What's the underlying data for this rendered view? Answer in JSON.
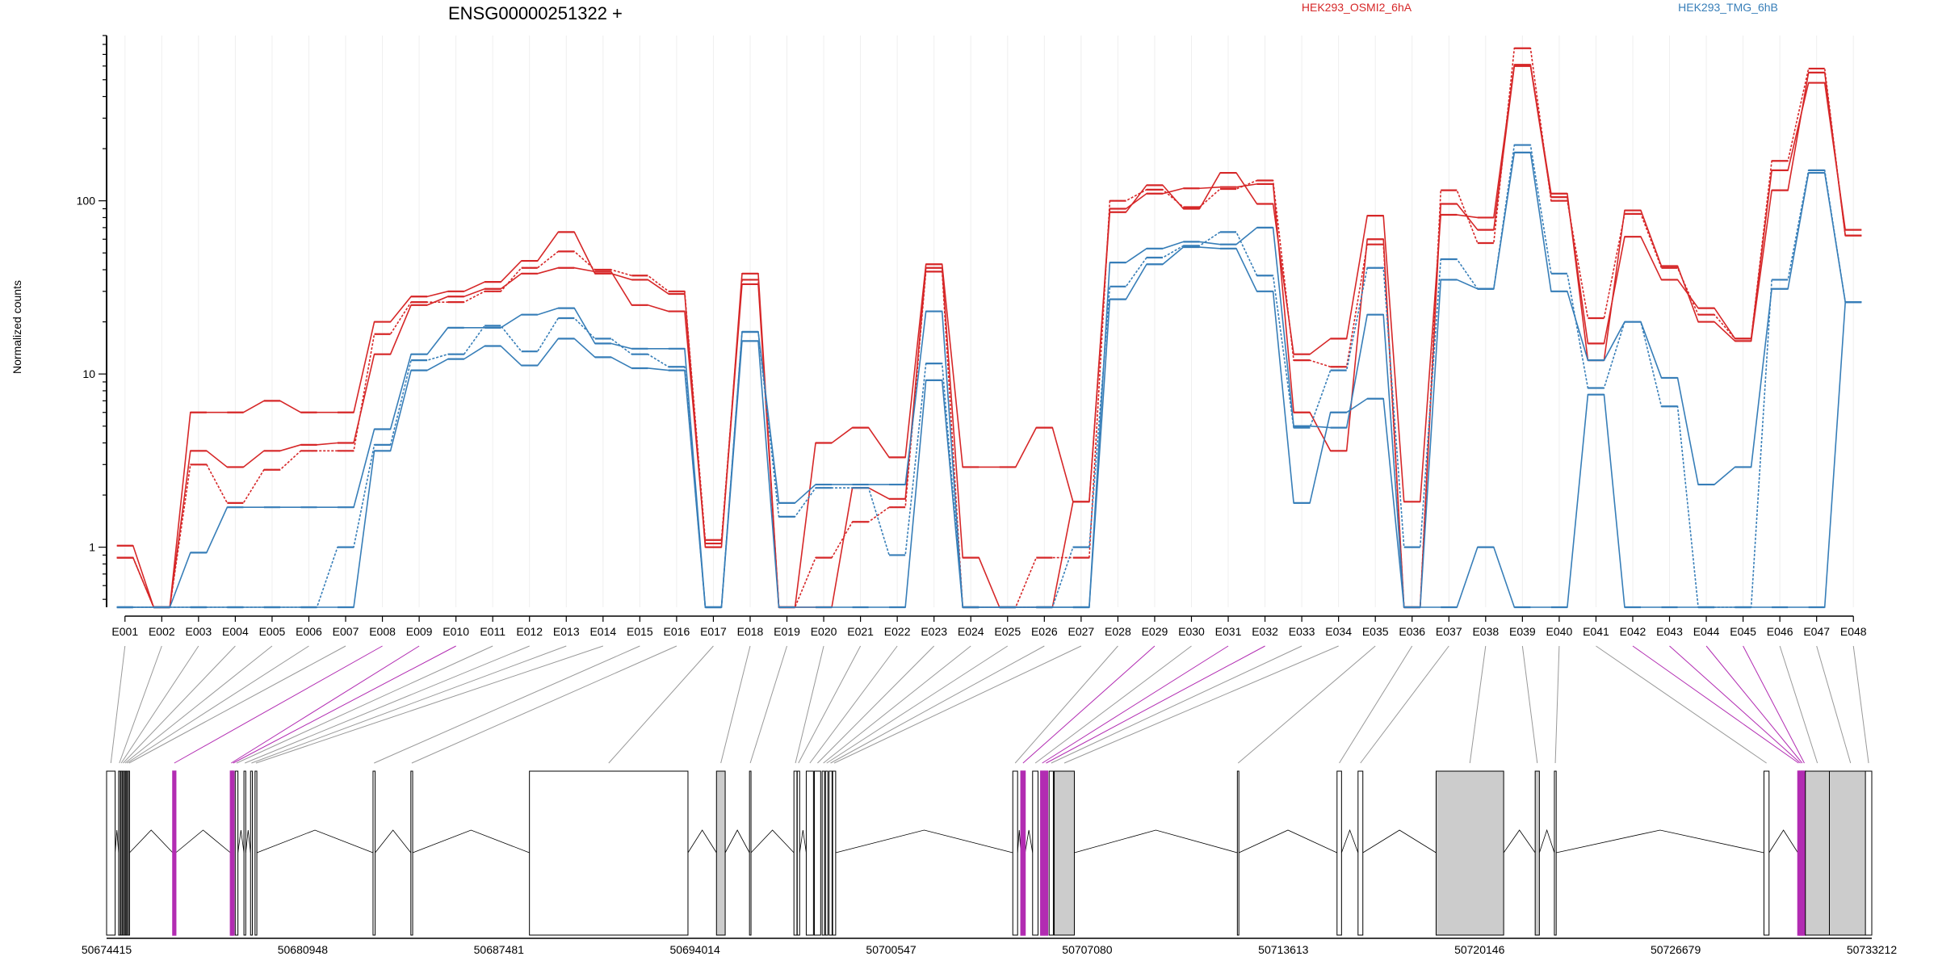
{
  "chart_data": {
    "type": "line",
    "title": "ENSG00000251322 +",
    "ylabel": "Normalized counts",
    "xlabel": "",
    "yscale": "log",
    "ylim": [
      0.45,
      900
    ],
    "yticks": [
      1,
      10,
      100
    ],
    "ytick_labels": [
      "1",
      "10",
      "100"
    ],
    "grid": "vertical",
    "legend_placement": "top",
    "categories": [
      "E001",
      "E002",
      "E003",
      "E004",
      "E005",
      "E006",
      "E007",
      "E008",
      "E009",
      "E010",
      "E011",
      "E012",
      "E013",
      "E014",
      "E015",
      "E016",
      "E017",
      "E018",
      "E019",
      "E020",
      "E021",
      "E022",
      "E023",
      "E024",
      "E025",
      "E026",
      "E027",
      "E028",
      "E029",
      "E030",
      "E031",
      "E032",
      "E033",
      "E034",
      "E035",
      "E036",
      "E037",
      "E038",
      "E039",
      "E040",
      "E041",
      "E042",
      "E043",
      "E044",
      "E045",
      "E046",
      "E047",
      "E048"
    ],
    "groups": [
      {
        "name": "HEK293_OSMI2_6hA",
        "color": "#d62728"
      },
      {
        "name": "HEK293_TMG_6hB",
        "color": "#377eb8"
      }
    ],
    "series": [
      {
        "group": 0,
        "dash": false,
        "values": [
          1.02,
          0.45,
          3.6,
          2.9,
          3.6,
          3.9,
          4.0,
          13,
          25,
          28,
          31,
          38,
          41,
          39,
          25,
          23,
          1.05,
          33,
          0.45,
          0.45,
          2.2,
          1.9,
          41,
          0.87,
          0.45,
          0.45,
          1.83,
          90,
          110,
          118,
          120,
          125,
          6.0,
          3.6,
          60,
          0.45,
          96,
          68,
          600,
          105,
          15,
          62,
          35,
          24,
          16,
          150,
          480,
          68
        ]
      },
      {
        "group": 0,
        "dash": true,
        "values": [
          0.87,
          0.45,
          3.0,
          1.8,
          2.8,
          3.6,
          3.6,
          17,
          26,
          26,
          30,
          41,
          51,
          40,
          37,
          30,
          1.1,
          35,
          0.45,
          0.87,
          1.4,
          1.7,
          39,
          0.45,
          0.45,
          0.87,
          0.87,
          100,
          116,
          92,
          117,
          131,
          12,
          11,
          56,
          0.45,
          115,
          57,
          760,
          100,
          21,
          84,
          41,
          22,
          16,
          170,
          580,
          63
        ]
      },
      {
        "group": 0,
        "dash": false,
        "values": [
          0.87,
          0.45,
          6.0,
          6.0,
          7.0,
          6.0,
          6.0,
          20,
          28,
          30,
          34,
          45,
          66,
          38,
          35,
          29,
          1.0,
          38,
          0.45,
          4.0,
          4.9,
          3.3,
          43,
          2.9,
          2.9,
          4.9,
          1.83,
          86,
          123,
          90,
          145,
          96,
          13,
          16,
          82,
          1.83,
          83,
          80,
          610,
          110,
          12,
          88,
          42,
          20,
          15.5,
          115,
          550,
          63
        ]
      },
      {
        "group": 1,
        "dash": false,
        "values": [
          0.45,
          0.45,
          0.45,
          0.45,
          0.45,
          0.45,
          0.45,
          3.6,
          10.5,
          12.2,
          14.5,
          11.2,
          16,
          12.5,
          10.8,
          10.5,
          0.45,
          15.5,
          0.45,
          0.45,
          0.45,
          0.45,
          9.2,
          0.45,
          0.45,
          0.45,
          0.45,
          27,
          43,
          54,
          53,
          30,
          1.8,
          6.0,
          7.2,
          0.45,
          35,
          31,
          190,
          30,
          12,
          20,
          9.5,
          2.3,
          2.9,
          31,
          145,
          26
        ]
      },
      {
        "group": 1,
        "dash": true,
        "values": [
          0.45,
          0.45,
          0.45,
          0.45,
          0.45,
          0.45,
          1.0,
          3.9,
          12,
          13,
          19,
          13.5,
          21,
          16,
          13,
          11,
          0.45,
          17.5,
          1.5,
          2.2,
          2.2,
          0.9,
          11.5,
          0.45,
          0.45,
          0.45,
          1.0,
          32,
          47,
          55,
          66,
          37,
          4.9,
          10.5,
          41,
          1.0,
          46,
          31,
          210,
          38,
          8.3,
          20,
          6.5,
          0.45,
          0.45,
          35,
          150,
          26
        ]
      },
      {
        "group": 1,
        "dash": false,
        "values": [
          0.45,
          0.45,
          0.93,
          1.7,
          1.7,
          1.7,
          1.7,
          4.8,
          13,
          18.5,
          18.5,
          22,
          24,
          15,
          14,
          14,
          0.45,
          17.5,
          1.8,
          2.3,
          2.3,
          2.3,
          23,
          0.45,
          0.45,
          0.45,
          0.45,
          44,
          53,
          58,
          56,
          70,
          5.0,
          4.9,
          22,
          0.45,
          0.45,
          1.0,
          0.45,
          0.45,
          7.6,
          0.45,
          0.45,
          0.45,
          0.45,
          0.45,
          0.45,
          26
        ]
      }
    ],
    "gene_model": {
      "genomic_range": [
        50674415,
        50733212
      ],
      "axis_ticks": [
        50674415,
        50680948,
        50687481,
        50694014,
        50700547,
        50707080,
        50713613,
        50720146,
        50726679,
        50733212
      ],
      "axis_tick_labels": [
        "50674415",
        "50680948",
        "50687481",
        "50694014",
        "50700547",
        "50707080",
        "50713613",
        "50720146",
        "50726679",
        "50733212"
      ],
      "exon_fill": "#cccccc",
      "highlight_color": "#b22cb2",
      "exons": [
        {
          "id": "E001",
          "start": 50674415,
          "end": 50674700,
          "filled": false,
          "highlight": false
        },
        {
          "id": "E002",
          "start": 50674815,
          "end": 50674865,
          "filled": false,
          "highlight": false
        },
        {
          "id": "E003",
          "start": 50674880,
          "end": 50674925,
          "filled": false,
          "highlight": false
        },
        {
          "id": "E004",
          "start": 50674945,
          "end": 50674985,
          "filled": false,
          "highlight": false
        },
        {
          "id": "E005",
          "start": 50675010,
          "end": 50675050,
          "filled": false,
          "highlight": false
        },
        {
          "id": "E006",
          "start": 50675070,
          "end": 50675110,
          "filled": false,
          "highlight": false
        },
        {
          "id": "E007",
          "start": 50675140,
          "end": 50675180,
          "filled": false,
          "highlight": false
        },
        {
          "id": "E008",
          "start": 50676620,
          "end": 50676720,
          "filled": false,
          "highlight": true
        },
        {
          "id": "E009",
          "start": 50678540,
          "end": 50678590,
          "filled": false,
          "highlight": true
        },
        {
          "id": "E010",
          "start": 50678600,
          "end": 50678660,
          "filled": false,
          "highlight": true
        },
        {
          "id": "E011",
          "start": 50678700,
          "end": 50678790,
          "filled": false,
          "highlight": false
        },
        {
          "id": "E012",
          "start": 50678990,
          "end": 50679050,
          "filled": false,
          "highlight": false
        },
        {
          "id": "E013",
          "start": 50679210,
          "end": 50679270,
          "filled": false,
          "highlight": false
        },
        {
          "id": "E014",
          "start": 50679360,
          "end": 50679420,
          "filled": false,
          "highlight": false
        },
        {
          "id": "E015",
          "start": 50683290,
          "end": 50683360,
          "filled": false,
          "highlight": false
        },
        {
          "id": "E016",
          "start": 50684550,
          "end": 50684610,
          "filled": false,
          "highlight": false
        },
        {
          "id": "E017",
          "start": 50688500,
          "end": 50693780,
          "filled": false,
          "highlight": false
        },
        {
          "id": "E018",
          "start": 50694730,
          "end": 50695020,
          "filled": true,
          "highlight": false
        },
        {
          "id": "E019",
          "start": 50695830,
          "end": 50695880,
          "filled": false,
          "highlight": false
        },
        {
          "id": "E020",
          "start": 50697310,
          "end": 50697410,
          "filled": false,
          "highlight": false
        },
        {
          "id": "E021",
          "start": 50697420,
          "end": 50697500,
          "filled": false,
          "highlight": false
        },
        {
          "id": "E022",
          "start": 50697720,
          "end": 50697960,
          "filled": false,
          "highlight": false
        },
        {
          "id": "E023",
          "start": 50697990,
          "end": 50698200,
          "filled": false,
          "highlight": false
        },
        {
          "id": "E024",
          "start": 50698250,
          "end": 50698330,
          "filled": false,
          "highlight": false
        },
        {
          "id": "E025",
          "start": 50698360,
          "end": 50698440,
          "filled": false,
          "highlight": false
        },
        {
          "id": "E026",
          "start": 50698480,
          "end": 50698580,
          "filled": false,
          "highlight": false
        },
        {
          "id": "E027",
          "start": 50698600,
          "end": 50698700,
          "filled": false,
          "highlight": false
        },
        {
          "id": "E028",
          "start": 50704600,
          "end": 50704760,
          "filled": false,
          "highlight": false
        },
        {
          "id": "E029",
          "start": 50704870,
          "end": 50705010,
          "filled": false,
          "highlight": true
        },
        {
          "id": "E030",
          "start": 50705260,
          "end": 50705440,
          "filled": false,
          "highlight": false
        },
        {
          "id": "E031",
          "start": 50705530,
          "end": 50705630,
          "filled": false,
          "highlight": true
        },
        {
          "id": "E032",
          "start": 50705660,
          "end": 50705760,
          "filled": false,
          "highlight": true
        },
        {
          "id": "E033",
          "start": 50705810,
          "end": 50705950,
          "filled": false,
          "highlight": false
        },
        {
          "id": "E034",
          "start": 50705980,
          "end": 50706650,
          "filled": true,
          "highlight": false
        },
        {
          "id": "E035",
          "start": 50712080,
          "end": 50712130,
          "filled": false,
          "highlight": false
        },
        {
          "id": "E036",
          "start": 50715400,
          "end": 50715550,
          "filled": false,
          "highlight": false
        },
        {
          "id": "E037",
          "start": 50716100,
          "end": 50716260,
          "filled": false,
          "highlight": false
        },
        {
          "id": "E038",
          "start": 50718700,
          "end": 50720950,
          "filled": true,
          "highlight": false
        },
        {
          "id": "E039",
          "start": 50722000,
          "end": 50722140,
          "filled": true,
          "highlight": false
        },
        {
          "id": "E040",
          "start": 50722640,
          "end": 50722700,
          "filled": false,
          "highlight": false
        },
        {
          "id": "E041",
          "start": 50729620,
          "end": 50729790,
          "filled": false,
          "highlight": false
        },
        {
          "id": "E042",
          "start": 50730750,
          "end": 50730800,
          "filled": false,
          "highlight": true
        },
        {
          "id": "E043",
          "start": 50730810,
          "end": 50730860,
          "filled": false,
          "highlight": true
        },
        {
          "id": "E044",
          "start": 50730870,
          "end": 50730920,
          "filled": false,
          "highlight": true
        },
        {
          "id": "E045",
          "start": 50730930,
          "end": 50731000,
          "filled": false,
          "highlight": true
        },
        {
          "id": "E046",
          "start": 50731000,
          "end": 50731800,
          "filled": true,
          "highlight": false
        },
        {
          "id": "E047",
          "start": 50731800,
          "end": 50733212,
          "filled": true,
          "highlight": false
        },
        {
          "id": "E048",
          "start": 50733000,
          "end": 50733212,
          "filled": false,
          "highlight": false
        }
      ]
    }
  }
}
